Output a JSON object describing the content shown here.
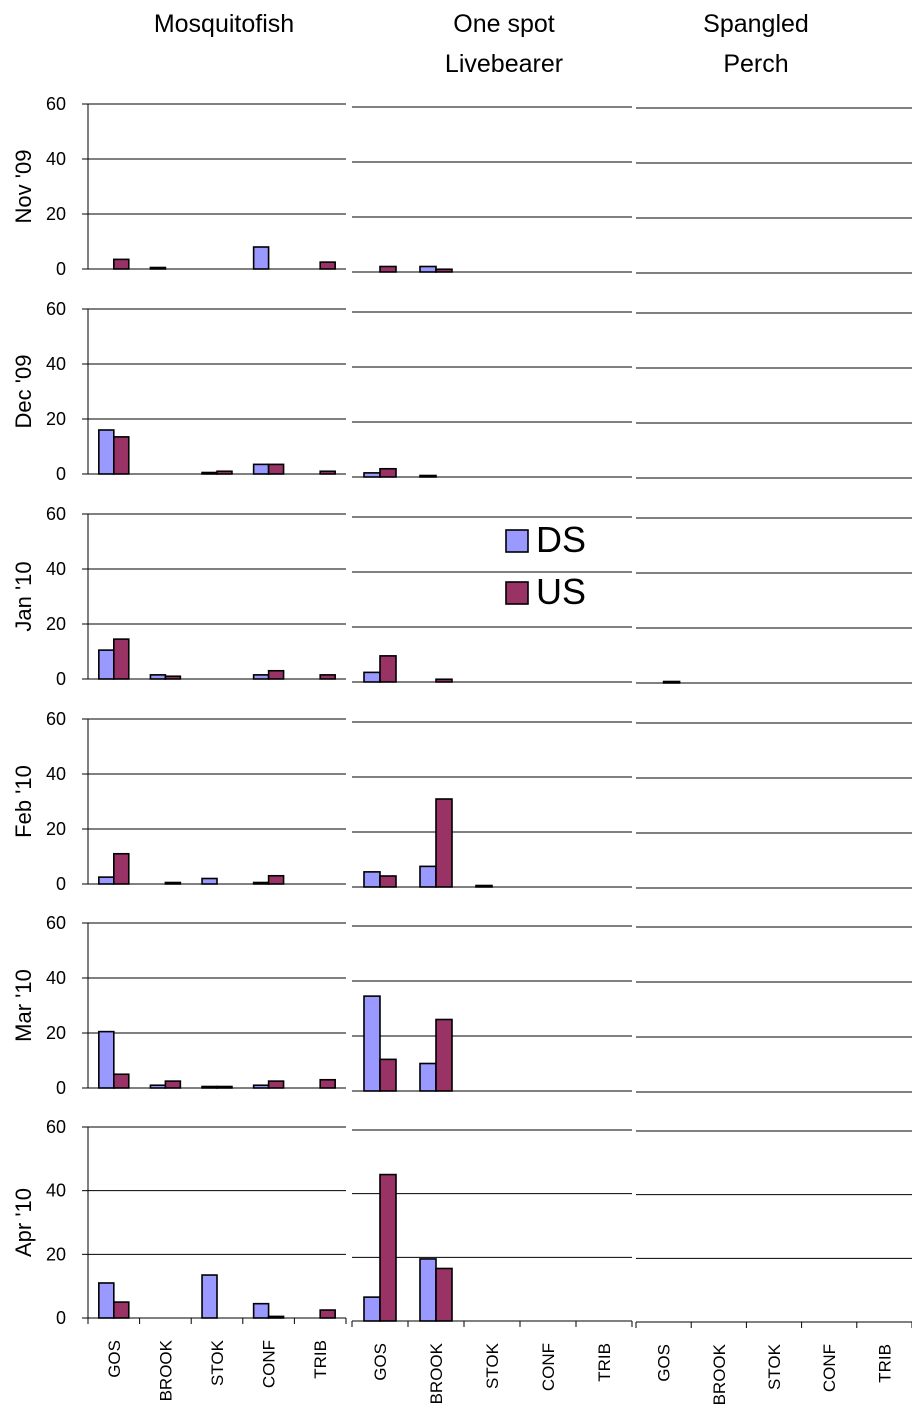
{
  "colors": {
    "DS": "#9999ff",
    "US": "#993366",
    "axis": "#000000",
    "grid": "#000000"
  },
  "legend": {
    "placement": "inside-middle-right",
    "entries": [
      {
        "key": "DS",
        "label": "DS"
      },
      {
        "key": "US",
        "label": "US"
      }
    ]
  },
  "chart_data": {
    "type": "bar",
    "layout": "small-multiples grid (rows = months, columns = species)",
    "categories": [
      "GOS",
      "BROOK",
      "STOK",
      "CONF",
      "TRIB"
    ],
    "series_keys": [
      "DS",
      "US"
    ],
    "columns": [
      {
        "title_lines": [
          "Mosquitofish"
        ]
      },
      {
        "title_lines": [
          "One spot",
          "Livebearer"
        ]
      },
      {
        "title_lines": [
          "Spangled",
          "Perch"
        ]
      }
    ],
    "rows": [
      {
        "label": "Nov '09",
        "ylim": [
          0,
          60
        ],
        "yticks": [
          0,
          20,
          40,
          60
        ],
        "panels": [
          {
            "DS": [
              0,
              0.5,
              0,
              8,
              0
            ],
            "US": [
              3.5,
              0,
              0,
              0,
              2.5
            ]
          },
          {
            "DS": [
              0,
              2,
              0,
              0,
              0
            ],
            "US": [
              2,
              1,
              0,
              0,
              0
            ]
          },
          {
            "DS": [
              0,
              0,
              0,
              0,
              0
            ],
            "US": [
              0,
              0,
              0,
              0,
              0
            ]
          }
        ]
      },
      {
        "label": "Dec '09",
        "ylim": [
          0,
          60
        ],
        "yticks": [
          0,
          20,
          40,
          60
        ],
        "panels": [
          {
            "DS": [
              16,
              0,
              0.5,
              3.5,
              0
            ],
            "US": [
              13.5,
              0,
              1,
              3.5,
              1
            ]
          },
          {
            "DS": [
              1.5,
              0.3,
              0,
              0,
              0
            ],
            "US": [
              3,
              0,
              0,
              0,
              0
            ]
          },
          {
            "DS": [
              0,
              0,
              0,
              0,
              0
            ],
            "US": [
              0,
              0,
              0,
              0,
              0
            ]
          }
        ]
      },
      {
        "label": "Jan '10",
        "ylim": [
          0,
          60
        ],
        "yticks": [
          0,
          20,
          40,
          60
        ],
        "panels": [
          {
            "DS": [
              10.5,
              1.5,
              0,
              1.5,
              0
            ],
            "US": [
              14.5,
              1,
              0,
              3,
              1.5
            ]
          },
          {
            "DS": [
              3.5,
              0,
              0,
              0,
              0
            ],
            "US": [
              9.5,
              1,
              0,
              0,
              0
            ]
          },
          {
            "DS": [
              0,
              0,
              0,
              0,
              0
            ],
            "US": [
              0.5,
              0,
              0,
              0,
              0
            ]
          }
        ]
      },
      {
        "label": "Feb '10",
        "ylim": [
          0,
          60
        ],
        "yticks": [
          0,
          20,
          40,
          60
        ],
        "panels": [
          {
            "DS": [
              2.5,
              0,
              2,
              0.5,
              0
            ],
            "US": [
              11,
              0.5,
              0,
              3,
              0
            ]
          },
          {
            "DS": [
              5.5,
              7.5,
              0.3,
              0,
              0
            ],
            "US": [
              4,
              32,
              0,
              0,
              0
            ]
          },
          {
            "DS": [
              0,
              0,
              0,
              0,
              0
            ],
            "US": [
              0,
              0,
              0,
              0,
              0
            ]
          }
        ]
      },
      {
        "label": "Mar '10",
        "ylim": [
          0,
          60
        ],
        "yticks": [
          0,
          20,
          40,
          60
        ],
        "panels": [
          {
            "DS": [
              20.5,
              1,
              0.3,
              1,
              0
            ],
            "US": [
              5,
              2.5,
              0.3,
              2.5,
              3
            ]
          },
          {
            "DS": [
              34.5,
              10,
              0,
              0,
              0
            ],
            "US": [
              11.5,
              26,
              0,
              0,
              0
            ]
          },
          {
            "DS": [
              0,
              0,
              0,
              0,
              0
            ],
            "US": [
              0,
              0,
              0,
              0,
              0
            ]
          }
        ]
      },
      {
        "label": "Apr '10",
        "ylim": [
          0,
          60
        ],
        "yticks": [
          0,
          20,
          40,
          60
        ],
        "panels": [
          {
            "DS": [
              11,
              0,
              13.5,
              4.5,
              0
            ],
            "US": [
              5,
              0,
              0,
              0.5,
              2.5
            ]
          },
          {
            "DS": [
              7.5,
              19.5,
              0,
              0,
              0
            ],
            "US": [
              46,
              16.5,
              0,
              0,
              0
            ]
          },
          {
            "DS": [
              0,
              0,
              0,
              0,
              0
            ],
            "US": [
              0,
              0,
              0,
              0,
              0
            ]
          }
        ]
      }
    ]
  }
}
